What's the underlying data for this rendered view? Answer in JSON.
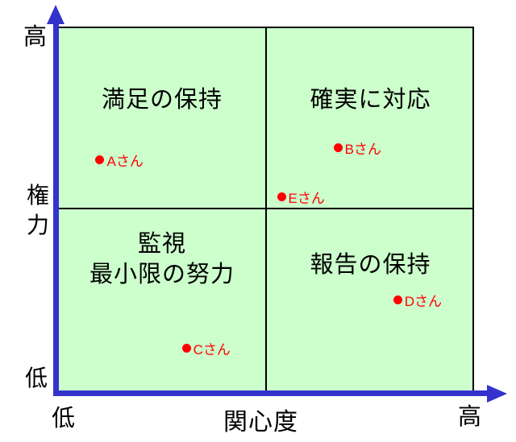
{
  "chart_data": {
    "type": "scatter",
    "title": "",
    "xlabel": "関心度",
    "ylabel": "権力",
    "x_axis": {
      "low_label": "低",
      "high_label": "高",
      "range": [
        0,
        1
      ]
    },
    "y_axis": {
      "low_label": "低",
      "high_label": "高",
      "range": [
        0,
        1
      ]
    },
    "grid": "quadrant (2x2 dividers at midpoints)",
    "legend": "none",
    "quadrants": {
      "top_left": "満足の保持",
      "top_right": "確実に対応",
      "bottom_left": [
        "監視",
        "最小限の努力"
      ],
      "bottom_right": "報告の保持"
    },
    "points": [
      {
        "label": "Aさん",
        "interest": 0.099,
        "power": 0.637
      },
      {
        "label": "Bさん",
        "interest": 0.672,
        "power": 0.67
      },
      {
        "label": "Eさん",
        "interest": 0.536,
        "power": 0.536
      },
      {
        "label": "Cさん",
        "interest": 0.307,
        "power": 0.123
      },
      {
        "label": "Dさん",
        "interest": 0.816,
        "power": 0.253
      }
    ],
    "colors": {
      "plot_bg": "#ccffcc",
      "axis": "#3333cc",
      "point": "#ff0000",
      "grid_line": "#000000"
    }
  }
}
